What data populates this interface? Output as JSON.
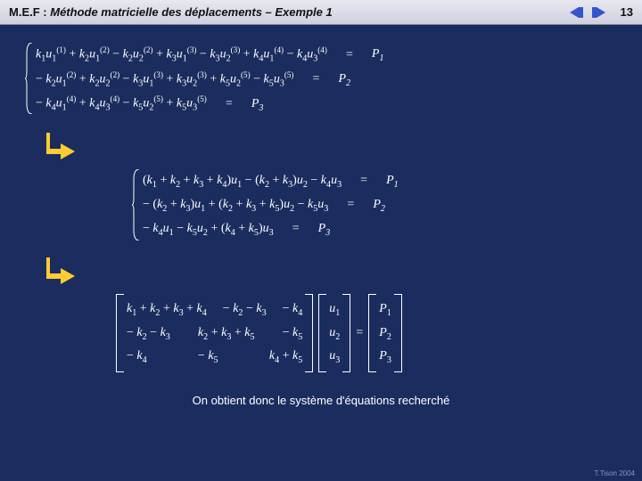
{
  "header": {
    "prefix": "M.E.F :",
    "title": "Méthode matricielle des déplacements – Exemple 1",
    "page": "13"
  },
  "colors": {
    "page_bg": "#1a2d5e",
    "header_grad_top": "#e8e8f0",
    "header_grad_bottom": "#d0d0e0",
    "nav_fill": "#3355cc",
    "arrow_fill": "#ffcc33",
    "text": "#ffffff"
  },
  "block1": {
    "rows": [
      {
        "lhs_html": "<span class='ital'>k</span><sub>1</sub><span class='ital'>u</span><sub>1</sub><sup>(1)</sup> + <span class='ital'>k</span><sub>2</sub><span class='ital'>u</span><sub>1</sub><sup>(2)</sup> − <span class='ital'>k</span><sub>2</sub><span class='ital'>u</span><sub>2</sub><sup>(2)</sup> + <span class='ital'>k</span><sub>3</sub><span class='ital'>u</span><sub>1</sub><sup>(3)</sup> − <span class='ital'>k</span><sub>3</sub><span class='ital'>u</span><sub>2</sub><sup>(3)</sup> + <span class='ital'>k</span><sub>4</sub><span class='ital'>u</span><sub>1</sub><sup>(4)</sup> − <span class='ital'>k</span><sub>4</sub><span class='ital'>u</span><sub>3</sub><sup>(4)</sup>",
        "rhs": "P",
        "rsub": "1"
      },
      {
        "lhs_html": "− <span class='ital'>k</span><sub>2</sub><span class='ital'>u</span><sub>1</sub><sup>(2)</sup> + <span class='ital'>k</span><sub>2</sub><span class='ital'>u</span><sub>2</sub><sup>(2)</sup> − <span class='ital'>k</span><sub>3</sub><span class='ital'>u</span><sub>1</sub><sup>(3)</sup> + <span class='ital'>k</span><sub>3</sub><span class='ital'>u</span><sub>2</sub><sup>(3)</sup> + <span class='ital'>k</span><sub>5</sub><span class='ital'>u</span><sub>2</sub><sup>(5)</sup> − <span class='ital'>k</span><sub>5</sub><span class='ital'>u</span><sub>3</sub><sup>(5)</sup>",
        "rhs": "P",
        "rsub": "2"
      },
      {
        "lhs_html": "− <span class='ital'>k</span><sub>4</sub><span class='ital'>u</span><sub>1</sub><sup>(4)</sup> + <span class='ital'>k</span><sub>4</sub><span class='ital'>u</span><sub>3</sub><sup>(4)</sup> − <span class='ital'>k</span><sub>5</sub><span class='ital'>u</span><sub>2</sub><sup>(5)</sup> + <span class='ital'>k</span><sub>5</sub><span class='ital'>u</span><sub>3</sub><sup>(5)</sup>",
        "rhs": "P",
        "rsub": "3"
      }
    ]
  },
  "block2": {
    "rows": [
      {
        "lhs_html": "(<span class='ital'>k</span><sub>1</sub> + <span class='ital'>k</span><sub>2</sub> + <span class='ital'>k</span><sub>3</sub> + <span class='ital'>k</span><sub>4</sub>)<span class='ital'>u</span><sub>1</sub> − (<span class='ital'>k</span><sub>2</sub> + <span class='ital'>k</span><sub>3</sub>)<span class='ital'>u</span><sub>2</sub> − <span class='ital'>k</span><sub>4</sub><span class='ital'>u</span><sub>3</sub>",
        "rhs": "P",
        "rsub": "1"
      },
      {
        "lhs_html": "− (<span class='ital'>k</span><sub>2</sub> + <span class='ital'>k</span><sub>3</sub>)<span class='ital'>u</span><sub>1</sub> + (<span class='ital'>k</span><sub>2</sub> + <span class='ital'>k</span><sub>3</sub> + <span class='ital'>k</span><sub>5</sub>)<span class='ital'>u</span><sub>2</sub> − <span class='ital'>k</span><sub>5</sub><span class='ital'>u</span><sub>3</sub>",
        "rhs": "P",
        "rsub": "2"
      },
      {
        "lhs_html": "− <span class='ital'>k</span><sub>4</sub><span class='ital'>u</span><sub>1</sub> − <span class='ital'>k</span><sub>5</sub><span class='ital'>u</span><sub>2</sub> + (<span class='ital'>k</span><sub>4</sub> + <span class='ital'>k</span><sub>5</sub>)<span class='ital'>u</span><sub>3</sub>",
        "rhs": "P",
        "rsub": "3"
      }
    ]
  },
  "matrix": {
    "K": [
      [
        "k₁ + k₂ + k₃ + k₄",
        "− k₂ − k₃",
        "− k₄"
      ],
      [
        "− k₂ − k₃",
        "k₂ + k₃ + k₅",
        "− k₅"
      ],
      [
        "− k₄",
        "− k₅",
        "k₄ + k₅"
      ]
    ],
    "u": [
      "u₁",
      "u₂",
      "u₃"
    ],
    "P": [
      "P₁",
      "P₂",
      "P₃"
    ],
    "eq": "="
  },
  "footer": "On obtient donc le système d'équations recherché",
  "copyright": "T.Tison 2004"
}
